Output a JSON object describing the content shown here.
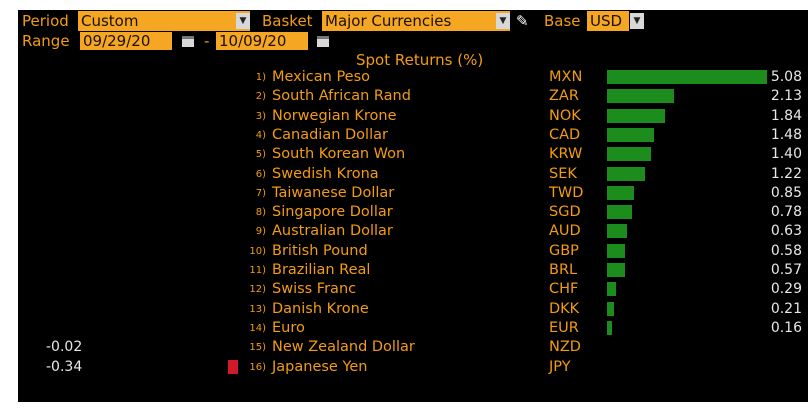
{
  "toolbar": {
    "period_label": "Period",
    "period_value": "Custom",
    "basket_label": "Basket",
    "basket_value": "Major Currencies",
    "base_label": "Base",
    "base_value": "USD",
    "range_label": "Range",
    "start_date": "09/29/20",
    "range_separator": "-",
    "end_date": "10/09/20"
  },
  "chart_title": "Spot Returns (%)",
  "colors": {
    "accent": "#f39c12",
    "field": "#f5a623",
    "positive": "#1c8c1c",
    "negative": "#d01a2a",
    "background": "#000000"
  },
  "chart_data": {
    "type": "bar",
    "title": "Spot Returns (%)",
    "categories": [
      "Mexican Peso",
      "South African Rand",
      "Norwegian Krone",
      "Canadian Dollar",
      "South Korean Won",
      "Swedish Krona",
      "Taiwanese Dollar",
      "Singapore Dollar",
      "Australian Dollar",
      "British Pound",
      "Brazilian Real",
      "Swiss Franc",
      "Danish Krone",
      "Euro",
      "New Zealand Dollar",
      "Japanese Yen"
    ],
    "codes": [
      "MXN",
      "ZAR",
      "NOK",
      "CAD",
      "KRW",
      "SEK",
      "TWD",
      "SGD",
      "AUD",
      "GBP",
      "BRL",
      "CHF",
      "DKK",
      "EUR",
      "NZD",
      "JPY"
    ],
    "ranks": [
      "1)",
      "2)",
      "3)",
      "4)",
      "5)",
      "6)",
      "7)",
      "8)",
      "9)",
      "10)",
      "11)",
      "12)",
      "13)",
      "14)",
      "15)",
      "16)"
    ],
    "values": [
      5.08,
      2.13,
      1.84,
      1.48,
      1.4,
      1.22,
      0.85,
      0.78,
      0.63,
      0.58,
      0.57,
      0.29,
      0.21,
      0.16,
      -0.02,
      -0.34
    ],
    "labels": [
      "5.08",
      "2.13",
      "1.84",
      "1.48",
      "1.40",
      "1.22",
      "0.85",
      "0.78",
      "0.63",
      "0.58",
      "0.57",
      "0.29",
      "0.21",
      "0.16",
      "-0.02",
      "-0.34"
    ]
  }
}
